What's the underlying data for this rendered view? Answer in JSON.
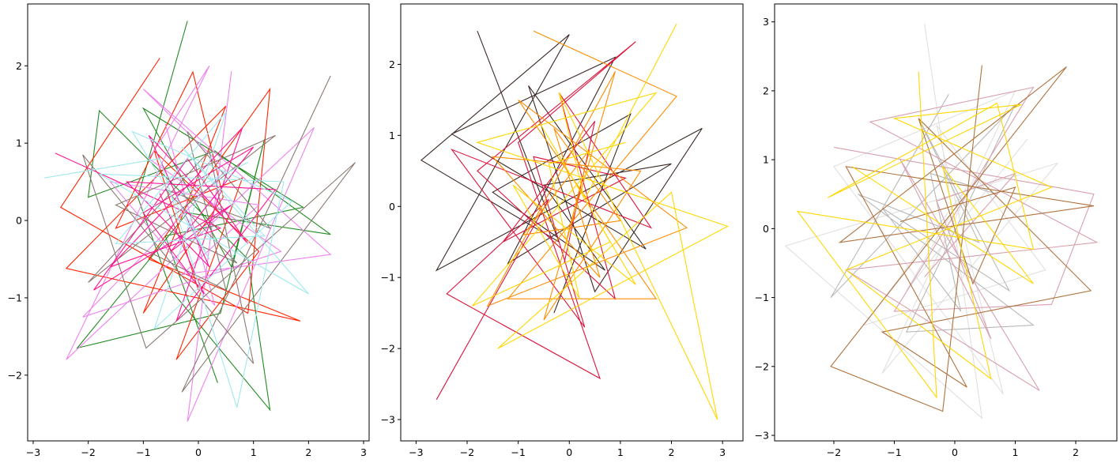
{
  "chart_data": [
    {
      "type": "line",
      "title": "",
      "xlabel": "",
      "ylabel": "",
      "xlim": [
        -3.1,
        3.1
      ],
      "ylim": [
        -2.85,
        2.8
      ],
      "xticks": [
        -3,
        -2,
        -1,
        0,
        1,
        2,
        3
      ],
      "yticks": [
        -2,
        -1,
        0,
        1,
        2
      ],
      "xtick_labels": [
        "−3",
        "−2",
        "−1",
        "0",
        "1",
        "2",
        "3"
      ],
      "ytick_labels": [
        "−2",
        "−1",
        "0",
        "1",
        "2"
      ],
      "grid": false,
      "legend": "none",
      "series": [
        {
          "color": "#228b22",
          "points": [
            [
              -0.2,
              2.58
            ],
            [
              -1.1,
              0.3
            ],
            [
              -0.5,
              -0.9
            ],
            [
              1.3,
              -2.45
            ],
            [
              0.9,
              -0.5
            ],
            [
              -1.8,
              1.42
            ],
            [
              -2.0,
              0.3
            ],
            [
              0.3,
              0.9
            ],
            [
              2.4,
              -0.18
            ],
            [
              -0.2,
              0.1
            ],
            [
              -2.2,
              -1.65
            ],
            [
              0.4,
              -1.2
            ],
            [
              1.2,
              1.05
            ],
            [
              0.6,
              -0.6
            ],
            [
              -1.0,
              1.45
            ],
            [
              1.9,
              0.17
            ],
            [
              -0.6,
              -0.2
            ],
            [
              0.35,
              -2.1
            ]
          ]
        },
        {
          "color": "#ff2400",
          "points": [
            [
              -0.7,
              2.1
            ],
            [
              -2.5,
              0.17
            ],
            [
              0.9,
              -1.2
            ],
            [
              1.3,
              1.7
            ],
            [
              -0.9,
              -0.5
            ],
            [
              1.85,
              -1.3
            ],
            [
              -2.4,
              -0.62
            ],
            [
              0.5,
              1.48
            ],
            [
              -1.0,
              -1.2
            ],
            [
              0.45,
              0.3
            ],
            [
              -0.1,
              1.92
            ],
            [
              -1.5,
              -0.1
            ],
            [
              0.8,
              0.55
            ],
            [
              -0.4,
              -1.8
            ],
            [
              1.1,
              -0.4
            ],
            [
              -0.8,
              0.9
            ],
            [
              0.0,
              -0.9
            ]
          ]
        },
        {
          "color": "#ee82ee",
          "points": [
            [
              0.6,
              1.93
            ],
            [
              -0.2,
              -2.6
            ],
            [
              2.1,
              1.2
            ],
            [
              -2.4,
              -1.8
            ],
            [
              0.2,
              2.0
            ],
            [
              -0.9,
              0.8
            ],
            [
              1.5,
              -0.4
            ],
            [
              -2.1,
              -1.25
            ],
            [
              0.5,
              0.65
            ],
            [
              -1.0,
              1.7
            ],
            [
              2.4,
              -0.44
            ],
            [
              -0.3,
              -0.7
            ],
            [
              1.1,
              0.2
            ],
            [
              -1.6,
              0.5
            ],
            [
              0.3,
              -1.1
            ],
            [
              -0.6,
              1.25
            ]
          ]
        },
        {
          "color": "#8b7a72",
          "points": [
            [
              2.4,
              1.87
            ],
            [
              -0.3,
              -2.22
            ],
            [
              2.85,
              0.75
            ],
            [
              -0.95,
              -1.65
            ],
            [
              -2.1,
              0.85
            ],
            [
              1.0,
              -1.85
            ],
            [
              0.2,
              0.9
            ],
            [
              -2.0,
              -0.8
            ],
            [
              1.4,
              1.1
            ],
            [
              -1.5,
              0.2
            ],
            [
              0.7,
              -0.55
            ],
            [
              -0.6,
              0.4
            ],
            [
              1.3,
              -0.1
            ],
            [
              -0.2,
              1.15
            ],
            [
              0.5,
              -0.9
            ],
            [
              -1.2,
              -0.3
            ]
          ]
        },
        {
          "color": "#ff1493",
          "points": [
            [
              -2.6,
              0.87
            ],
            [
              0.4,
              -0.1
            ],
            [
              -1.6,
              -0.6
            ],
            [
              0.8,
              1.2
            ],
            [
              -0.4,
              -1.3
            ],
            [
              1.4,
              0.4
            ],
            [
              -1.3,
              0.5
            ],
            [
              0.2,
              -0.6
            ],
            [
              -0.9,
              1.1
            ],
            [
              0.9,
              -0.3
            ],
            [
              -0.2,
              0.8
            ],
            [
              -1.9,
              -0.9
            ],
            [
              0.6,
              0.2
            ],
            [
              -0.5,
              -0.4
            ],
            [
              1.0,
              0.95
            ],
            [
              -1.0,
              0.1
            ],
            [
              0.1,
              -0.95
            ],
            [
              -0.7,
              0.35
            ]
          ]
        },
        {
          "color": "#9fe9ee",
          "points": [
            [
              -2.8,
              0.55
            ],
            [
              -0.7,
              0.8
            ],
            [
              0.7,
              -2.42
            ],
            [
              1.55,
              0.5
            ],
            [
              -1.8,
              0.6
            ],
            [
              2.0,
              -0.95
            ],
            [
              -0.3,
              0.95
            ],
            [
              1.2,
              -0.2
            ],
            [
              -1.5,
              -0.3
            ],
            [
              0.5,
              1.4
            ],
            [
              -0.8,
              -1.4
            ],
            [
              1.7,
              0.25
            ],
            [
              -1.2,
              1.15
            ],
            [
              0.2,
              -0.5
            ],
            [
              -0.4,
              0.3
            ],
            [
              0.9,
              0.75
            ]
          ]
        }
      ]
    },
    {
      "type": "line",
      "title": "",
      "xlabel": "",
      "ylabel": "",
      "xlim": [
        -3.3,
        3.4
      ],
      "ylim": [
        -3.3,
        2.85
      ],
      "xticks": [
        -3,
        -2,
        -1,
        0,
        1,
        2,
        3
      ],
      "yticks": [
        -3,
        -2,
        -1,
        0,
        1,
        2
      ],
      "xtick_labels": [
        "−3",
        "−2",
        "−1",
        "0",
        "1",
        "2",
        "3"
      ],
      "ytick_labels": [
        "−3",
        "−2",
        "−1",
        "0",
        "1",
        "2"
      ],
      "grid": false,
      "legend": "none",
      "series": [
        {
          "color": "#3b2a26",
          "points": [
            [
              -1.8,
              2.47
            ],
            [
              -0.2,
              -0.5
            ],
            [
              -2.9,
              0.65
            ],
            [
              0.0,
              2.42
            ],
            [
              -2.6,
              -0.9
            ],
            [
              2.6,
              1.1
            ],
            [
              0.5,
              -1.2
            ],
            [
              -0.8,
              1.7
            ],
            [
              1.5,
              -0.6
            ],
            [
              -2.3,
              1.02
            ],
            [
              0.9,
              2.1
            ],
            [
              -1.2,
              -0.8
            ],
            [
              2.0,
              0.6
            ],
            [
              -0.5,
              0.3
            ],
            [
              0.7,
              -0.9
            ],
            [
              -1.5,
              0.2
            ],
            [
              1.2,
              1.3
            ],
            [
              -0.3,
              -1.5
            ]
          ]
        },
        {
          "color": "#dc143c",
          "points": [
            [
              -2.6,
              -2.72
            ],
            [
              -0.4,
              0.1
            ],
            [
              -2.4,
              -1.23
            ],
            [
              0.6,
              -2.42
            ],
            [
              -1.0,
              0.9
            ],
            [
              1.3,
              2.32
            ],
            [
              -1.8,
              0.5
            ],
            [
              0.9,
              -1.3
            ],
            [
              -0.2,
              1.6
            ],
            [
              1.6,
              -0.3
            ],
            [
              -2.3,
              0.8
            ],
            [
              0.3,
              -1.7
            ],
            [
              -0.7,
              0.7
            ],
            [
              1.1,
              0.4
            ],
            [
              -1.3,
              -0.5
            ],
            [
              0.5,
              1.2
            ],
            [
              -0.1,
              -0.8
            ]
          ]
        },
        {
          "color": "#ff8c00",
          "points": [
            [
              -0.7,
              2.47
            ],
            [
              2.1,
              1.55
            ],
            [
              -1.2,
              -1.3
            ],
            [
              1.7,
              -1.3
            ],
            [
              -1.0,
              1.5
            ],
            [
              2.3,
              -0.3
            ],
            [
              -1.6,
              -1.4
            ],
            [
              0.9,
              1.9
            ],
            [
              -0.5,
              -1.6
            ],
            [
              1.4,
              0.5
            ],
            [
              -1.5,
              0.7
            ],
            [
              0.6,
              -1.0
            ],
            [
              -0.3,
              1.1
            ],
            [
              1.0,
              -0.2
            ],
            [
              -0.9,
              -0.4
            ],
            [
              0.4,
              0.8
            ],
            [
              -0.1,
              -0.6
            ]
          ]
        },
        {
          "color": "#ffd700",
          "points": [
            [
              2.1,
              2.57
            ],
            [
              0.3,
              0.1
            ],
            [
              -0.2,
              1.6
            ],
            [
              2.9,
              -3.0
            ],
            [
              2.0,
              0.2
            ],
            [
              -1.4,
              -2.0
            ],
            [
              3.1,
              -0.28
            ],
            [
              -1.8,
              0.9
            ],
            [
              1.7,
              1.6
            ],
            [
              -1.9,
              -1.4
            ],
            [
              0.8,
              -0.5
            ],
            [
              -0.6,
              1.2
            ],
            [
              1.3,
              -1.1
            ],
            [
              -1.1,
              0.3
            ],
            [
              0.2,
              -1.3
            ],
            [
              -0.4,
              0.6
            ],
            [
              1.1,
              0.9
            ]
          ]
        }
      ]
    },
    {
      "type": "line",
      "title": "",
      "xlabel": "",
      "ylabel": "",
      "xlim": [
        -2.98,
        2.68
      ],
      "ylim": [
        -3.08,
        3.26
      ],
      "xticks": [
        -2,
        -1,
        0,
        1,
        2
      ],
      "yticks": [
        -3,
        -2,
        -1,
        0,
        1,
        2,
        3
      ],
      "xtick_labels": [
        "−2",
        "−1",
        "0",
        "1",
        "2"
      ],
      "ytick_labels": [
        "−3",
        "−2",
        "−1",
        "0",
        "1",
        "2",
        "3"
      ],
      "grid": false,
      "legend": "none",
      "series": [
        {
          "color": "#e0e0e0",
          "points": [
            [
              -0.5,
              2.97
            ],
            [
              0.45,
              -2.75
            ],
            [
              -2.8,
              -0.25
            ],
            [
              1.7,
              0.95
            ],
            [
              -1.2,
              -2.1
            ],
            [
              1.0,
              2.0
            ],
            [
              -2.0,
              0.9
            ],
            [
              0.8,
              -2.4
            ],
            [
              -0.3,
              1.5
            ],
            [
              1.5,
              -0.6
            ],
            [
              -1.5,
              -1.4
            ],
            [
              0.2,
              0.6
            ],
            [
              -0.8,
              -0.9
            ],
            [
              1.2,
              1.3
            ]
          ]
        },
        {
          "color": "#b8b8b8",
          "points": [
            [
              -0.1,
              1.95
            ],
            [
              -2.05,
              -1.0
            ],
            [
              1.0,
              1.8
            ],
            [
              -0.8,
              -1.5
            ],
            [
              1.3,
              -1.4
            ],
            [
              -1.6,
              0.5
            ],
            [
              0.4,
              -0.2
            ],
            [
              -0.6,
              1.6
            ],
            [
              0.9,
              -0.9
            ],
            [
              -1.2,
              0.3
            ],
            [
              0.1,
              -1.2
            ],
            [
              -0.4,
              0.8
            ],
            [
              0.7,
              0.5
            ]
          ]
        },
        {
          "color": "#d8a0ac",
          "points": [
            [
              -2.0,
              1.18
            ],
            [
              2.3,
              0.5
            ],
            [
              1.6,
              -1.1
            ],
            [
              -1.0,
              -1.2
            ],
            [
              1.3,
              2.05
            ],
            [
              -1.4,
              1.55
            ],
            [
              2.35,
              -0.2
            ],
            [
              -1.8,
              -0.6
            ],
            [
              1.4,
              -2.35
            ],
            [
              -0.9,
              1.0
            ],
            [
              0.6,
              -1.6
            ],
            [
              -0.3,
              0.4
            ],
            [
              1.0,
              0.8
            ],
            [
              -0.5,
              -0.7
            ]
          ]
        },
        {
          "color": "#b0733f",
          "points": [
            [
              0.45,
              2.37
            ],
            [
              -0.2,
              -2.65
            ],
            [
              -2.05,
              -2.0
            ],
            [
              1.85,
              2.35
            ],
            [
              -1.9,
              -0.2
            ],
            [
              2.3,
              0.33
            ],
            [
              -1.8,
              0.9
            ],
            [
              0.2,
              -2.3
            ],
            [
              -1.2,
              -1.5
            ],
            [
              2.25,
              -0.9
            ],
            [
              -0.6,
              1.6
            ],
            [
              0.3,
              -0.8
            ],
            [
              1.0,
              0.6
            ],
            [
              -0.9,
              0.1
            ]
          ]
        },
        {
          "color": "#ffd700",
          "points": [
            [
              -0.6,
              2.28
            ],
            [
              -0.3,
              -2.45
            ],
            [
              -2.6,
              0.25
            ],
            [
              1.3,
              -0.3
            ],
            [
              0.7,
              1.82
            ],
            [
              -2.1,
              0.45
            ],
            [
              1.1,
              1.8
            ],
            [
              -1.0,
              1.6
            ],
            [
              1.6,
              0.6
            ],
            [
              -1.8,
              -0.6
            ],
            [
              0.6,
              -2.18
            ],
            [
              -0.2,
              0.9
            ],
            [
              1.3,
              -0.8
            ],
            [
              -1.7,
              0.9
            ]
          ]
        }
      ]
    }
  ]
}
